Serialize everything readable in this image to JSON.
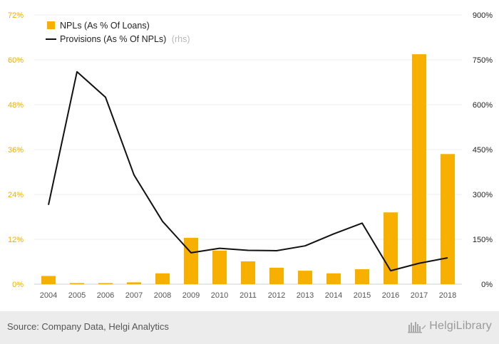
{
  "chart_data": {
    "type": "bar+line",
    "categories": [
      "2004",
      "2005",
      "2006",
      "2007",
      "2008",
      "2009",
      "2010",
      "2011",
      "2012",
      "2013",
      "2014",
      "2015",
      "2016",
      "2017",
      "2018"
    ],
    "series": [
      {
        "name": "NPLs (As % Of Loans)",
        "type": "bar",
        "axis": "left",
        "color": "#f8b000",
        "values": [
          2.2,
          0.3,
          0.3,
          0.5,
          2.9,
          12.4,
          9.0,
          6.1,
          4.4,
          3.6,
          2.9,
          4.0,
          19.2,
          61.5,
          34.8
        ]
      },
      {
        "name": "Provisions (As % Of NPLs)",
        "type": "line",
        "axis": "right",
        "color": "#111111",
        "values": [
          265,
          710,
          625,
          365,
          210,
          105,
          120,
          113,
          112,
          128,
          168,
          204,
          45,
          70,
          88
        ]
      }
    ],
    "left_axis": {
      "min": 0,
      "max": 72,
      "ticks": [
        "0%",
        "12%",
        "24%",
        "36%",
        "48%",
        "60%",
        "72%"
      ],
      "color": "#f0b000"
    },
    "right_axis": {
      "min": 0,
      "max": 900,
      "ticks": [
        "0%",
        "150%",
        "300%",
        "450%",
        "600%",
        "750%",
        "900%"
      ],
      "color": "#222222"
    },
    "legend": {
      "position": "top-left",
      "items": [
        {
          "label": "NPLs (As % Of Loans)",
          "note": ""
        },
        {
          "label": "Provisions (As % Of NPLs)",
          "note": "(rhs)"
        }
      ]
    },
    "grid": true
  },
  "footer": {
    "source": "Source: Company Data, Helgi Analytics",
    "brand": "HelgiLibrary"
  }
}
